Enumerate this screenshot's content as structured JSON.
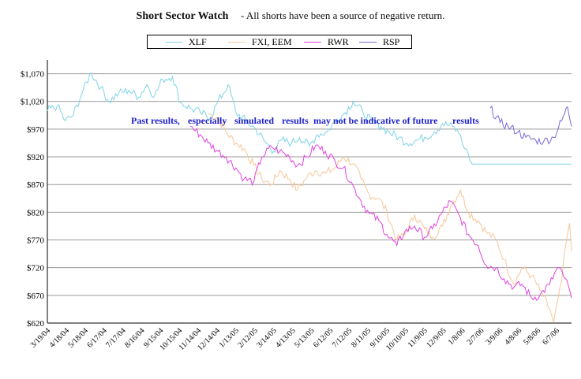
{
  "chart_data": {
    "type": "line",
    "title": "Short Sector Watch",
    "subtitle": "- All shorts have been a source of negative return.",
    "annotation": [
      "Past results,",
      "especially",
      "simulated",
      "results",
      "may not be indicative of future",
      "results"
    ],
    "ylim": [
      620,
      1095
    ],
    "y_ticks": [
      "$1,070",
      "$1,020",
      "$970",
      "$920",
      "$870",
      "$820",
      "$770",
      "$720",
      "$670",
      "$620"
    ],
    "y_tick_values": [
      1070,
      1020,
      970,
      920,
      870,
      820,
      770,
      720,
      670,
      620
    ],
    "x_ticks": [
      "3/19/04",
      "4/18/04",
      "5/18/04",
      "6/17/04",
      "7/17/04",
      "8/16/04",
      "9/15/04",
      "10/15/04",
      "11/14/04",
      "12/14/04",
      "1/13/05",
      "2/12/05",
      "3/14/05",
      "4/13/05",
      "5/13/05",
      "6/12/05",
      "7/12/05",
      "8/11/05",
      "9/10/05",
      "10/10/05",
      "11/9/05",
      "12/9/05",
      "1/8/06",
      "2/7/06",
      "3/9/06",
      "4/8/06",
      "5/8/06",
      "6/7/06"
    ],
    "grid": "horizontal",
    "legend_position": "top",
    "series": [
      {
        "name": "XLF",
        "color": "#7fd3e6",
        "points": [
          [
            0,
            1003
          ],
          [
            5,
            1012
          ],
          [
            9,
            985
          ],
          [
            13,
            995
          ],
          [
            18,
            1040
          ],
          [
            22,
            1072
          ],
          [
            27,
            1045
          ],
          [
            31,
            1020
          ],
          [
            36,
            1035
          ],
          [
            41,
            1040
          ],
          [
            46,
            1028
          ],
          [
            50,
            1050
          ],
          [
            54,
            1030
          ],
          [
            58,
            1060
          ],
          [
            63,
            1065
          ],
          [
            67,
            1018
          ],
          [
            72,
            1008
          ],
          [
            77,
            1000
          ],
          [
            82,
            990
          ],
          [
            86,
            1020
          ],
          [
            91,
            1050
          ],
          [
            95,
            1000
          ],
          [
            100,
            985
          ],
          [
            105,
            970
          ],
          [
            109,
            950
          ],
          [
            114,
            930
          ],
          [
            118,
            950
          ],
          [
            123,
            945
          ],
          [
            127,
            955
          ],
          [
            132,
            940
          ],
          [
            136,
            960
          ],
          [
            141,
            965
          ],
          [
            145,
            985
          ],
          [
            150,
            1000
          ],
          [
            154,
            1020
          ],
          [
            159,
            1000
          ],
          [
            163,
            985
          ],
          [
            168,
            975
          ],
          [
            172,
            965
          ],
          [
            177,
            955
          ],
          [
            181,
            945
          ],
          [
            186,
            950
          ],
          [
            190,
            955
          ],
          [
            195,
            965
          ],
          [
            199,
            980
          ],
          [
            204,
            975
          ],
          [
            208,
            960
          ],
          [
            210,
            935
          ],
          [
            212,
            925
          ],
          [
            214,
            907
          ],
          [
            264,
            907
          ]
        ]
      },
      {
        "name": "FXI, EEM",
        "color": "#f5c79a",
        "points": [
          [
            81,
            998
          ],
          [
            86,
            990
          ],
          [
            90,
            965
          ],
          [
            95,
            945
          ],
          [
            99,
            935
          ],
          [
            104,
            905
          ],
          [
            108,
            880
          ],
          [
            113,
            870
          ],
          [
            117,
            895
          ],
          [
            122,
            880
          ],
          [
            126,
            860
          ],
          [
            131,
            885
          ],
          [
            135,
            895
          ],
          [
            140,
            890
          ],
          [
            145,
            900
          ],
          [
            149,
            920
          ],
          [
            154,
            908
          ],
          [
            158,
            880
          ],
          [
            162,
            852
          ],
          [
            167,
            845
          ],
          [
            171,
            820
          ],
          [
            176,
            770
          ],
          [
            180,
            780
          ],
          [
            185,
            815
          ],
          [
            190,
            790
          ],
          [
            194,
            775
          ],
          [
            199,
            795
          ],
          [
            203,
            830
          ],
          [
            208,
            860
          ],
          [
            212,
            820
          ],
          [
            217,
            805
          ],
          [
            221,
            785
          ],
          [
            226,
            770
          ],
          [
            230,
            735
          ],
          [
            235,
            690
          ],
          [
            239,
            720
          ],
          [
            244,
            705
          ],
          [
            248,
            680
          ],
          [
            253,
            645
          ],
          [
            255,
            622
          ],
          [
            257,
            660
          ],
          [
            259,
            695
          ],
          [
            261,
            760
          ],
          [
            263,
            800
          ],
          [
            264,
            750
          ]
        ]
      },
      {
        "name": "RWR",
        "color": "#e044e0",
        "points": [
          [
            72,
            975
          ],
          [
            77,
            960
          ],
          [
            81,
            945
          ],
          [
            86,
            930
          ],
          [
            90,
            920
          ],
          [
            95,
            900
          ],
          [
            99,
            880
          ],
          [
            104,
            875
          ],
          [
            108,
            920
          ],
          [
            113,
            938
          ],
          [
            117,
            930
          ],
          [
            122,
            920
          ],
          [
            126,
            905
          ],
          [
            131,
            920
          ],
          [
            135,
            940
          ],
          [
            140,
            930
          ],
          [
            145,
            912
          ],
          [
            149,
            900
          ],
          [
            154,
            868
          ],
          [
            158,
            840
          ],
          [
            162,
            818
          ],
          [
            167,
            805
          ],
          [
            171,
            780
          ],
          [
            176,
            760
          ],
          [
            180,
            785
          ],
          [
            185,
            795
          ],
          [
            190,
            775
          ],
          [
            194,
            790
          ],
          [
            199,
            820
          ],
          [
            203,
            840
          ],
          [
            208,
            810
          ],
          [
            212,
            780
          ],
          [
            217,
            760
          ],
          [
            221,
            725
          ],
          [
            226,
            720
          ],
          [
            230,
            700
          ],
          [
            235,
            685
          ],
          [
            239,
            690
          ],
          [
            244,
            665
          ],
          [
            248,
            670
          ],
          [
            253,
            690
          ],
          [
            257,
            720
          ],
          [
            261,
            700
          ],
          [
            264,
            665
          ]
        ]
      },
      {
        "name": "RSP",
        "color": "#7a6ad8",
        "points": [
          [
            223,
            1008
          ],
          [
            228,
            982
          ],
          [
            232,
            975
          ],
          [
            237,
            965
          ],
          [
            241,
            955
          ],
          [
            246,
            950
          ],
          [
            250,
            948
          ],
          [
            255,
            955
          ],
          [
            259,
            985
          ],
          [
            262,
            1010
          ],
          [
            264,
            975
          ]
        ]
      }
    ]
  }
}
